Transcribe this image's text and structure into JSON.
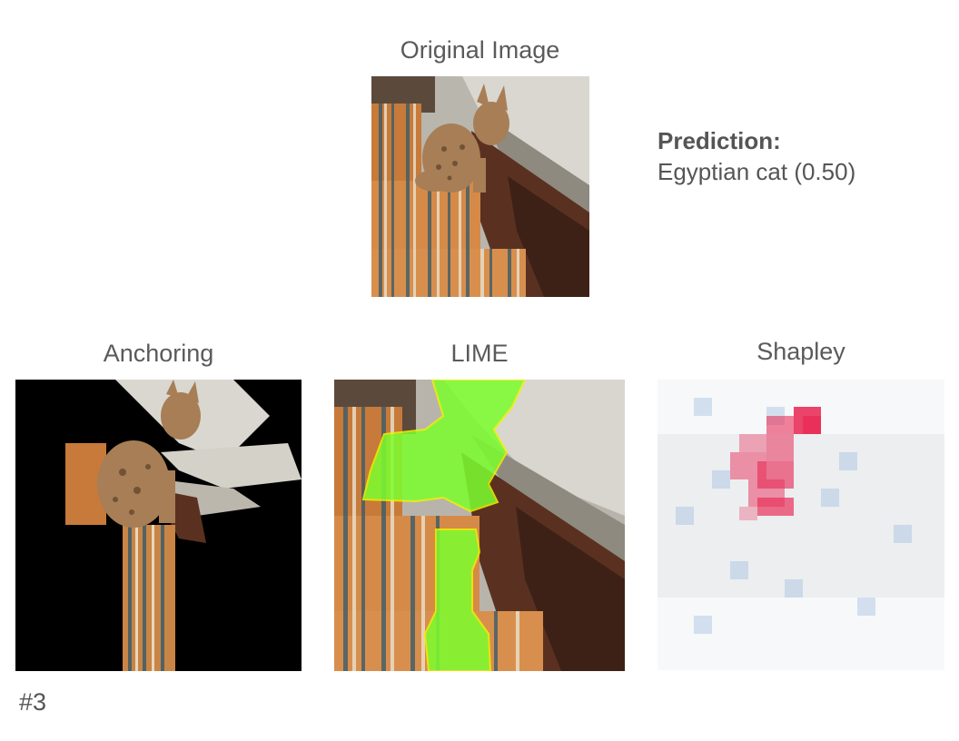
{
  "original": {
    "title": "Original Image"
  },
  "prediction": {
    "label": "Prediction:",
    "value": "Egyptian cat (0.50)"
  },
  "panels": {
    "anchoring": {
      "title": "Anchoring"
    },
    "lime": {
      "title": "LIME"
    },
    "shapley": {
      "title": "Shapley"
    }
  },
  "index": "#3",
  "colors": {
    "lime_highlight": "#7cff2e",
    "lime_boundary": "#f2f200",
    "shapley_positive": "#e8305a",
    "shapley_negative": "#8fb3dc"
  },
  "icons": [
    "cat-photo",
    "stairs-photo"
  ]
}
